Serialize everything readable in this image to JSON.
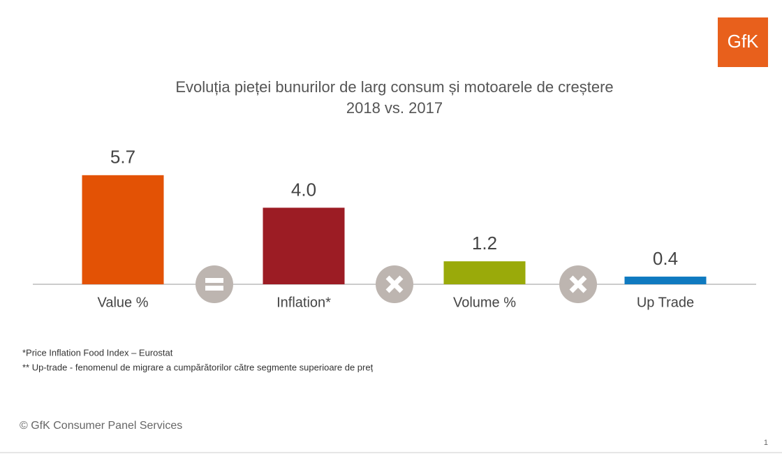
{
  "logo": "GfK",
  "chart_data": {
    "type": "bar",
    "title": "Evoluția pieței bunurilor de larg consum și motoarele de creștere",
    "subtitle": "2018 vs. 2017",
    "categories": [
      "Value %",
      "Inflation*",
      "Volume %",
      "Up Trade"
    ],
    "values": [
      5.7,
      4.0,
      1.2,
      0.4
    ],
    "value_labels": [
      "5.7",
      "4.0",
      "1.2",
      "0.4"
    ],
    "colors": [
      "#e35205",
      "#9c1c24",
      "#9aaa0a",
      "#0f7ac0"
    ]
  },
  "footnotes": [
    "*Price Inflation Food Index – Eurostat",
    "** Up-trade -  fenomenul de migrare a cumpărătorilor către segmente superioare de preț"
  ],
  "source": "© GfK Consumer Panel Services",
  "page_number": "1"
}
